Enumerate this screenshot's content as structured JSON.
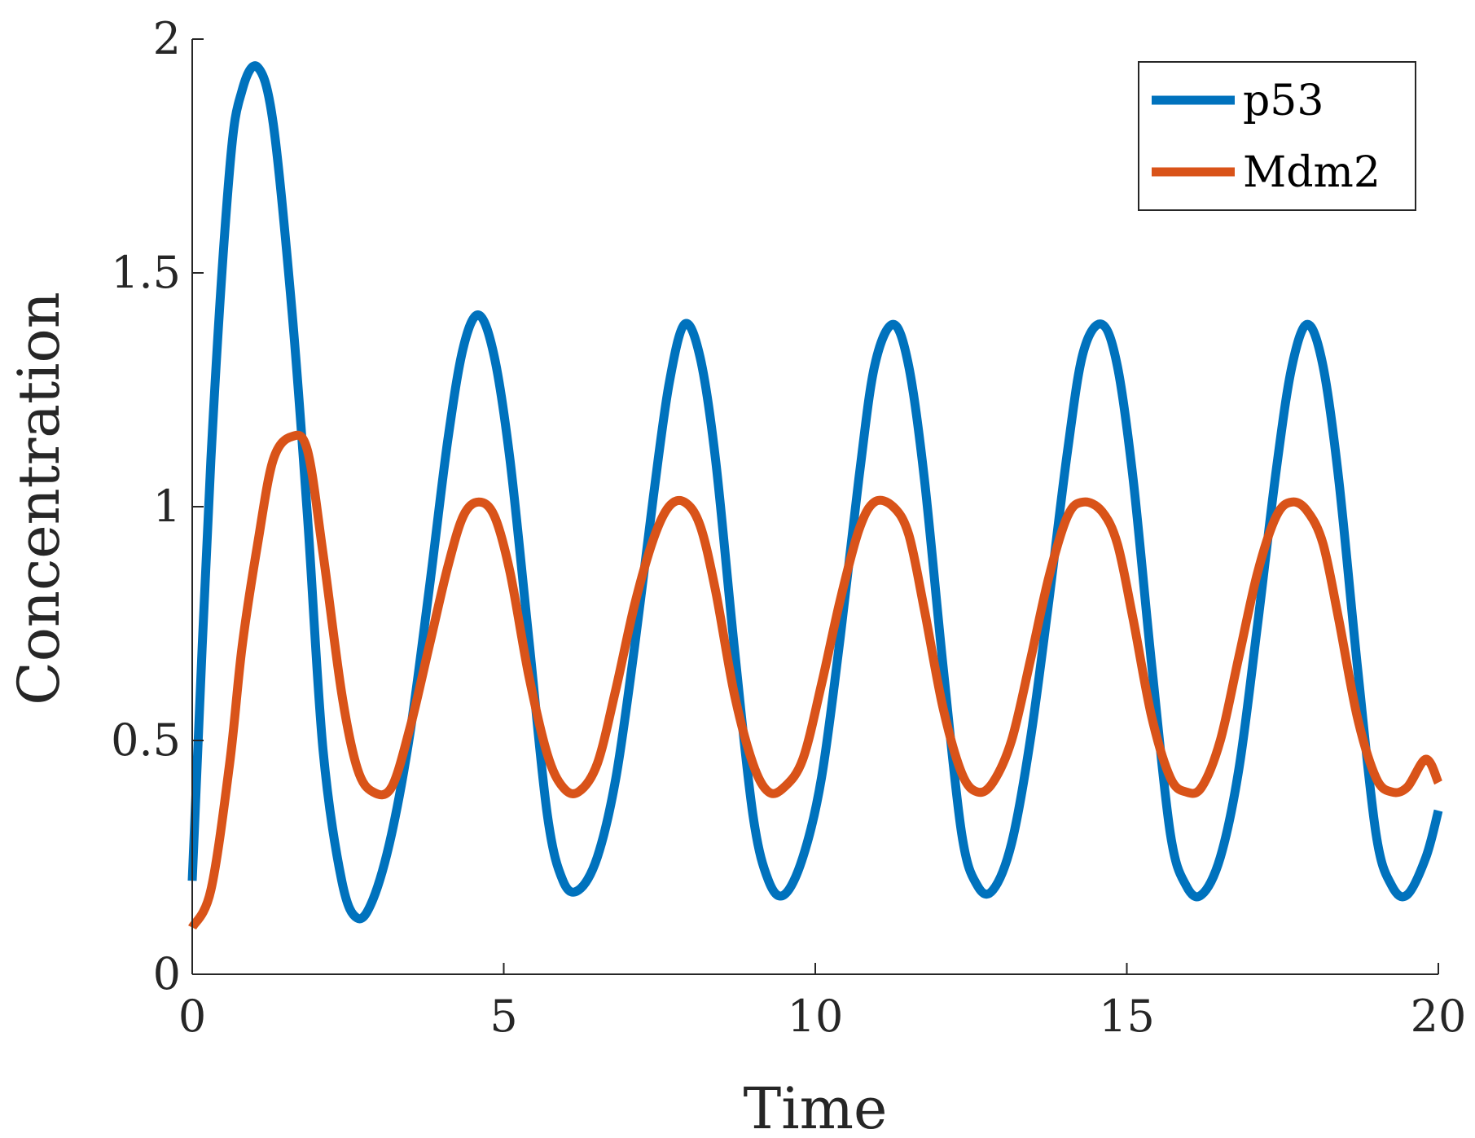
{
  "chart_data": {
    "type": "line",
    "title": "",
    "xlabel": "Time",
    "ylabel": "Concentration",
    "xlim": [
      0,
      20
    ],
    "ylim": [
      0,
      2
    ],
    "xticks": [
      0,
      5,
      10,
      15,
      20
    ],
    "yticks": [
      0,
      0.5,
      1,
      1.5,
      2
    ],
    "xtick_labels": [
      "0",
      "5",
      "10",
      "15",
      "20"
    ],
    "ytick_labels": [
      "0",
      "0.5",
      "1",
      "1.5",
      "2"
    ],
    "grid": false,
    "legend_position": "top-right",
    "x": [
      0,
      0.3,
      0.6,
      0.8,
      1.05,
      1.3,
      1.6,
      1.85,
      2.1,
      2.4,
      2.65,
      2.9,
      3.2,
      3.5,
      3.8,
      4.1,
      4.35,
      4.6,
      4.85,
      5.1,
      5.4,
      5.7,
      5.95,
      6.2,
      6.5,
      6.8,
      7.1,
      7.4,
      7.65,
      7.9,
      8.15,
      8.4,
      8.7,
      9.0,
      9.25,
      9.5,
      9.8,
      10.1,
      10.4,
      10.7,
      10.95,
      11.25,
      11.5,
      11.75,
      12.05,
      12.35,
      12.6,
      12.85,
      13.15,
      13.45,
      13.75,
      14.05,
      14.3,
      14.6,
      14.85,
      15.1,
      15.4,
      15.7,
      15.95,
      16.2,
      16.5,
      16.8,
      17.1,
      17.4,
      17.65,
      17.9,
      18.15,
      18.4,
      18.7,
      19.0,
      19.25,
      19.5,
      19.8,
      20.0
    ],
    "series": [
      {
        "name": "p53",
        "color": "#0072BD",
        "values": [
          0.2,
          1.1,
          1.72,
          1.89,
          1.94,
          1.82,
          1.42,
          0.98,
          0.48,
          0.2,
          0.12,
          0.16,
          0.3,
          0.52,
          0.82,
          1.14,
          1.34,
          1.41,
          1.32,
          1.1,
          0.72,
          0.34,
          0.2,
          0.18,
          0.25,
          0.42,
          0.7,
          1.02,
          1.26,
          1.39,
          1.32,
          1.1,
          0.7,
          0.34,
          0.2,
          0.17,
          0.25,
          0.42,
          0.72,
          1.06,
          1.3,
          1.39,
          1.3,
          1.06,
          0.66,
          0.3,
          0.19,
          0.18,
          0.28,
          0.5,
          0.8,
          1.12,
          1.33,
          1.39,
          1.3,
          1.06,
          0.66,
          0.3,
          0.19,
          0.17,
          0.25,
          0.44,
          0.75,
          1.08,
          1.3,
          1.39,
          1.3,
          1.06,
          0.66,
          0.3,
          0.19,
          0.17,
          0.25,
          0.35
        ]
      },
      {
        "name": "Mdm2",
        "color": "#D95319",
        "values": [
          0.1,
          0.18,
          0.45,
          0.7,
          0.92,
          1.1,
          1.15,
          1.12,
          0.9,
          0.6,
          0.44,
          0.39,
          0.4,
          0.53,
          0.7,
          0.87,
          0.98,
          1.01,
          0.98,
          0.86,
          0.64,
          0.47,
          0.4,
          0.39,
          0.45,
          0.61,
          0.79,
          0.93,
          1.0,
          1.01,
          0.96,
          0.82,
          0.6,
          0.45,
          0.39,
          0.4,
          0.46,
          0.62,
          0.8,
          0.95,
          1.01,
          1.0,
          0.94,
          0.78,
          0.57,
          0.43,
          0.39,
          0.41,
          0.5,
          0.67,
          0.85,
          0.98,
          1.01,
          0.99,
          0.92,
          0.76,
          0.55,
          0.42,
          0.39,
          0.4,
          0.5,
          0.68,
          0.86,
          0.98,
          1.01,
          0.99,
          0.92,
          0.76,
          0.55,
          0.42,
          0.39,
          0.4,
          0.46,
          0.41
        ]
      }
    ]
  }
}
